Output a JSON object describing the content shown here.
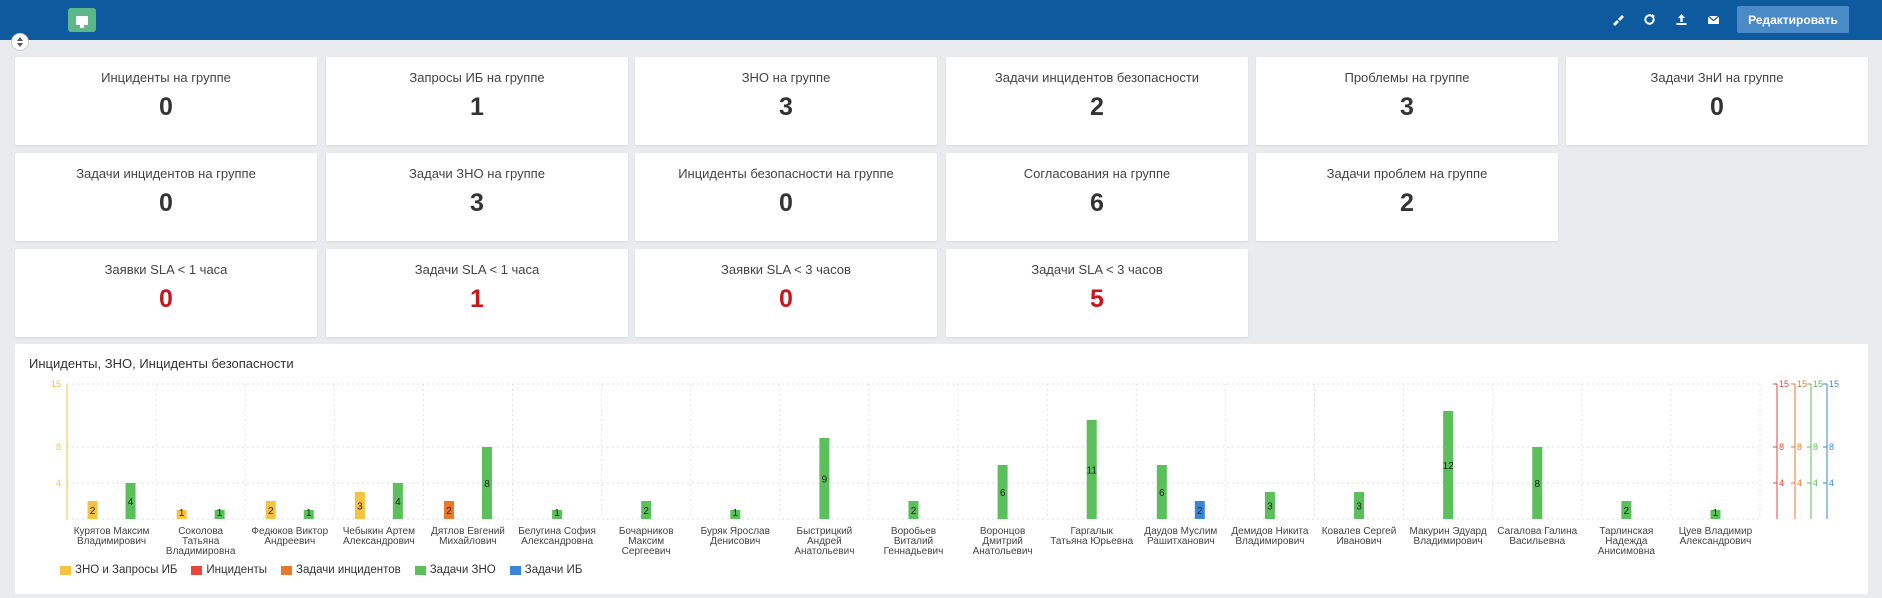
{
  "header": {
    "edit_label": "Редактировать",
    "icons": [
      "palette-icon",
      "refresh-icon",
      "upload-icon",
      "mail-icon"
    ],
    "bar_color": "#0d5a9e",
    "logo_color": "#5cb88a"
  },
  "tiles": [
    {
      "title": "Инциденты на группе",
      "value": "0",
      "red": false
    },
    {
      "title": "Запросы ИБ на группе",
      "value": "1",
      "red": false
    },
    {
      "title": "ЗНО на группе",
      "value": "3",
      "red": false
    },
    {
      "title": "Задачи инцидентов безопасности",
      "value": "2",
      "red": false
    },
    {
      "title": "Проблемы на группе",
      "value": "3",
      "red": false
    },
    {
      "title": "Задачи ЗнИ на группе",
      "value": "0",
      "red": false
    },
    {
      "title": "Задачи инцидентов на группе",
      "value": "0",
      "red": false
    },
    {
      "title": "Задачи ЗНО на группе",
      "value": "3",
      "red": false
    },
    {
      "title": "Инциденты безопасности на группе",
      "value": "0",
      "red": false
    },
    {
      "title": "Согласования на группе",
      "value": "6",
      "red": false
    },
    {
      "title": "Задачи проблем на группе",
      "value": "2",
      "red": false
    },
    {
      "title": "Заявки SLA < 1 часа",
      "value": "0",
      "red": true
    },
    {
      "title": "Задачи SLA < 1 часа",
      "value": "1",
      "red": true
    },
    {
      "title": "Заявки SLA < 3 часов",
      "value": "0",
      "red": true
    },
    {
      "title": "Задачи SLA < 3 часов",
      "value": "5",
      "red": true
    }
  ],
  "chart": {
    "title": "Инциденты, ЗНО, Инциденты безопасности"
  },
  "chart_data": {
    "type": "bar",
    "title": "Инциденты, ЗНО, Инциденты безопасности",
    "categories": [
      "Курятов Максим Владимирович",
      "Соколова Татьяна Владимировна",
      "Федюков Виктор Андреевич",
      "Чебыкин Артем Александрович",
      "Дятлов Евгений Михайлович",
      "Белугина София Александровна",
      "Бочарников Максим Сергеевич",
      "Буряк Ярослав Денисович",
      "Быстрицкий Андрей Анатольевич",
      "Воробьев Виталий Геннадьевич",
      "Воронцов Дмитрий Анатольевич",
      "Гаргалык Татьяна Юрьевна",
      "Даудов Муслим Рашитханович",
      "Демидов Никита Владимирович",
      "Ковалев Сергей Иванович",
      "Макурин Эдуард Владимирович",
      "Сагалова Галина Васильевна",
      "Тарлинская Надежда Анисимовна",
      "Цуев Владимир Александрович"
    ],
    "series": [
      {
        "name": "ЗНО и Запросы ИБ",
        "color": "#f5c342",
        "values": [
          2,
          1,
          2,
          3,
          0,
          0,
          0,
          0,
          0,
          0,
          0,
          0,
          0,
          0,
          0,
          0,
          0,
          0,
          0
        ]
      },
      {
        "name": "Инциденты",
        "color": "#e8453c",
        "values": [
          0,
          0,
          0,
          0,
          0,
          0,
          0,
          0,
          0,
          0,
          0,
          0,
          0,
          0,
          0,
          0,
          0,
          0,
          0
        ]
      },
      {
        "name": "Задачи инцидентов",
        "color": "#e8782a",
        "values": [
          0,
          0,
          0,
          0,
          2,
          0,
          0,
          0,
          0,
          0,
          0,
          0,
          0,
          0,
          0,
          0,
          0,
          0,
          0
        ]
      },
      {
        "name": "Задачи ЗНО",
        "color": "#5bbf5b",
        "values": [
          4,
          1,
          1,
          4,
          8,
          1,
          2,
          1,
          9,
          2,
          6,
          11,
          6,
          3,
          3,
          12,
          8,
          2,
          1
        ]
      },
      {
        "name": "Задачи ИБ",
        "color": "#3a86d6",
        "values": [
          0,
          0,
          0,
          0,
          0,
          0,
          0,
          0,
          0,
          0,
          0,
          0,
          2,
          0,
          0,
          0,
          0,
          0,
          0
        ]
      }
    ],
    "ylim": [
      0,
      15
    ],
    "yticks": [
      4,
      8,
      15
    ],
    "grid": true,
    "legend_position": "bottom-left"
  }
}
